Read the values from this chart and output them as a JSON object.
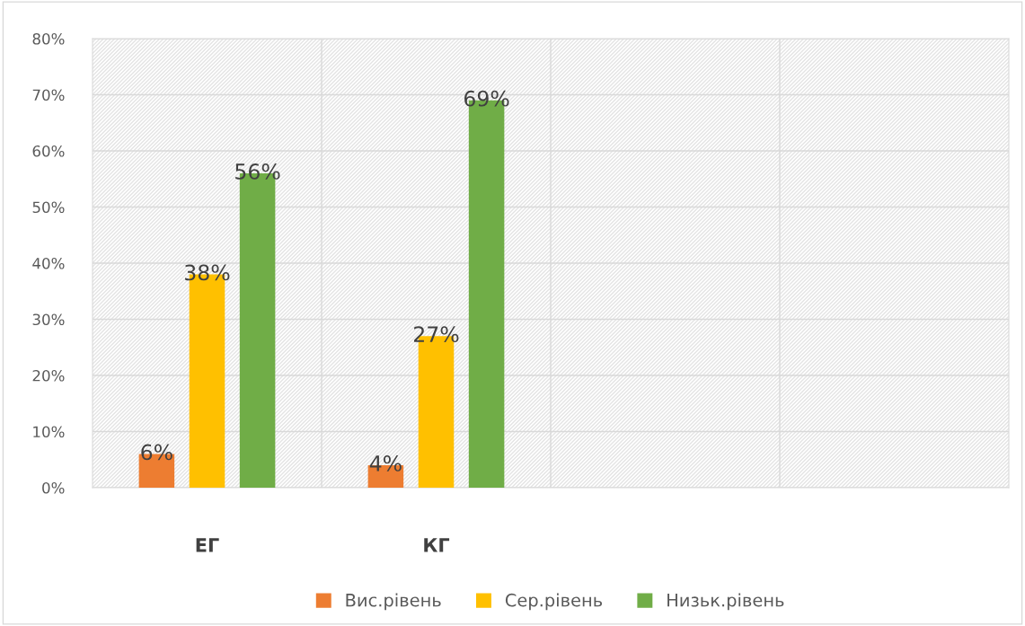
{
  "chart_data": {
    "type": "bar",
    "categories": [
      "ЕГ",
      "КГ",
      null,
      null
    ],
    "series": [
      {
        "name": "Вис.рівень",
        "color": "#ed7d31",
        "values": [
          6,
          4,
          null,
          null
        ],
        "value_labels": [
          "6%",
          "4%",
          null,
          null
        ]
      },
      {
        "name": "Сер.рівень",
        "color": "#ffc000",
        "values": [
          38,
          27,
          null,
          null
        ],
        "value_labels": [
          "38%",
          "27%",
          null,
          null
        ]
      },
      {
        "name": "Низьк.рівень",
        "color": "#70ad47",
        "values": [
          56,
          69,
          null,
          null
        ],
        "value_labels": [
          "56%",
          "69%",
          null,
          null
        ]
      }
    ],
    "ylim": [
      0,
      80
    ],
    "yticks": [
      {
        "value": 0,
        "label": "0%"
      },
      {
        "value": 10,
        "label": "10%"
      },
      {
        "value": 20,
        "label": "20%"
      },
      {
        "value": 30,
        "label": "30%"
      },
      {
        "value": 40,
        "label": "40%"
      },
      {
        "value": 50,
        "label": "50%"
      },
      {
        "value": 60,
        "label": "60%"
      },
      {
        "value": 70,
        "label": "70%"
      },
      {
        "value": 80,
        "label": "80%"
      }
    ],
    "grid": "y",
    "legend": "bottom"
  }
}
